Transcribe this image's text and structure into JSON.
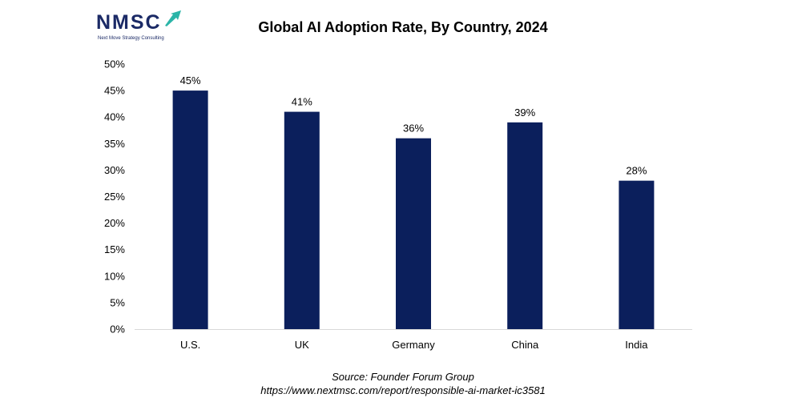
{
  "logo": {
    "text": "NMSC",
    "tagline": "Next Move Strategy Consulting"
  },
  "colors": {
    "bar": "#0b1f5c",
    "logo": "#1b2a66",
    "logo_accent": "#2bb5a8",
    "axis": "#d9d9d9"
  },
  "chart_data": {
    "type": "bar",
    "title": "Global AI Adoption Rate, By Country, 2024",
    "categories": [
      "U.S.",
      "UK",
      "Germany",
      "China",
      "India"
    ],
    "values": [
      45,
      41,
      36,
      39,
      28
    ],
    "data_labels": [
      "45%",
      "41%",
      "36%",
      "39%",
      "28%"
    ],
    "y_ticks": [
      "0%",
      "5%",
      "10%",
      "15%",
      "20%",
      "25%",
      "30%",
      "35%",
      "40%",
      "45%",
      "50%"
    ],
    "ylim": [
      0,
      50
    ],
    "xlabel": "",
    "ylabel": "",
    "grid": false,
    "legend": "none"
  },
  "source": {
    "line1": "Source: Founder Forum Group",
    "line2": "https://www.nextmsc.com/report/responsible-ai-market-ic3581"
  }
}
